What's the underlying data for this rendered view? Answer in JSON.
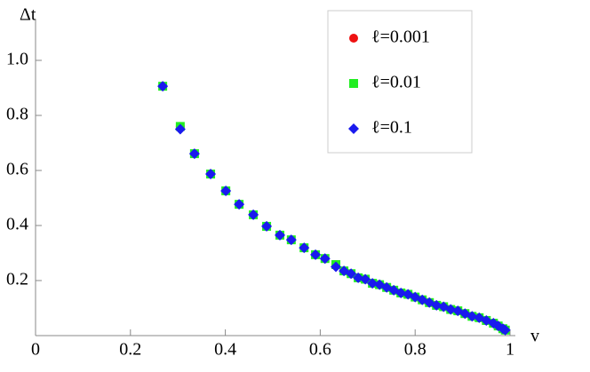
{
  "chart_data": {
    "type": "scatter",
    "xlabel": "v",
    "ylabel": "Δt",
    "x": [
      0.268,
      0.305,
      0.335,
      0.369,
      0.401,
      0.429,
      0.459,
      0.487,
      0.515,
      0.539,
      0.566,
      0.59,
      0.61,
      0.633,
      0.65,
      0.665,
      0.68,
      0.695,
      0.71,
      0.725,
      0.74,
      0.755,
      0.77,
      0.785,
      0.8,
      0.815,
      0.83,
      0.845,
      0.86,
      0.875,
      0.89,
      0.905,
      0.92,
      0.935,
      0.95,
      0.965,
      0.975,
      0.985,
      0.99
    ],
    "series": [
      {
        "name": "ℓ=0.001",
        "color": "#ee1111",
        "marker": "circle",
        "values": [
          0.906,
          0.76,
          0.661,
          0.587,
          0.526,
          0.477,
          0.439,
          0.397,
          0.365,
          0.348,
          0.319,
          0.294,
          0.28,
          0.258,
          0.235,
          0.225,
          0.21,
          0.205,
          0.19,
          0.185,
          0.175,
          0.165,
          0.155,
          0.15,
          0.14,
          0.13,
          0.12,
          0.11,
          0.105,
          0.095,
          0.09,
          0.08,
          0.07,
          0.065,
          0.055,
          0.045,
          0.035,
          0.025,
          0.02
        ]
      },
      {
        "name": "ℓ=0.01",
        "color": "#22ee22",
        "marker": "square",
        "values": [
          0.906,
          0.76,
          0.661,
          0.587,
          0.526,
          0.477,
          0.439,
          0.397,
          0.365,
          0.348,
          0.319,
          0.294,
          0.28,
          0.258,
          0.235,
          0.225,
          0.21,
          0.205,
          0.19,
          0.185,
          0.175,
          0.165,
          0.155,
          0.15,
          0.14,
          0.13,
          0.12,
          0.11,
          0.105,
          0.095,
          0.09,
          0.08,
          0.07,
          0.065,
          0.055,
          0.045,
          0.035,
          0.025,
          0.02
        ]
      },
      {
        "name": "ℓ=0.1",
        "color": "#1a1aee",
        "marker": "diamond",
        "values": [
          0.906,
          0.75,
          0.661,
          0.587,
          0.526,
          0.477,
          0.439,
          0.397,
          0.365,
          0.348,
          0.319,
          0.294,
          0.28,
          0.25,
          0.235,
          0.225,
          0.21,
          0.205,
          0.19,
          0.185,
          0.175,
          0.165,
          0.155,
          0.15,
          0.14,
          0.13,
          0.12,
          0.11,
          0.105,
          0.095,
          0.09,
          0.08,
          0.07,
          0.065,
          0.055,
          0.045,
          0.035,
          0.025,
          0.02
        ]
      }
    ],
    "xlim": [
      0,
      1
    ],
    "xticks": [
      0,
      0.2,
      0.4,
      0.6,
      0.8,
      1
    ],
    "ylim": [
      0,
      1.1
    ],
    "yticks": [
      0.2,
      0.4,
      0.6,
      0.8,
      {
        "value": 1,
        "label": "1.0"
      }
    ],
    "legend": "upper right"
  }
}
